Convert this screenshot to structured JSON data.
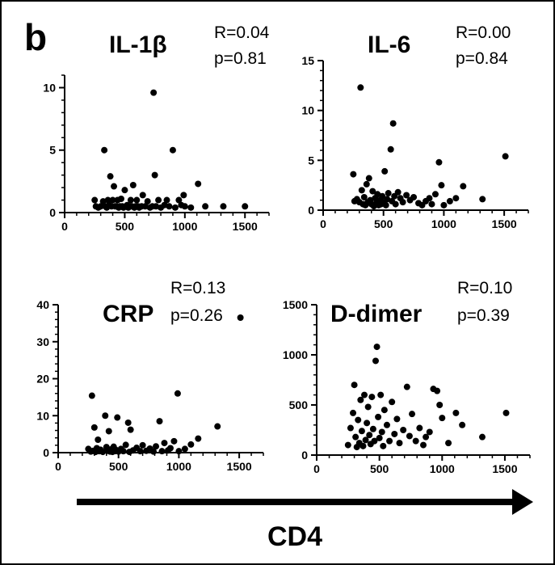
{
  "figure": {
    "panel_letter": "b",
    "x_axis_title": "CD4"
  },
  "chart_data": [
    {
      "type": "scatter",
      "title": "IL-1β",
      "annotations": [
        "R=0.04",
        "p=0.81"
      ],
      "xlim": [
        0,
        1700
      ],
      "ylim": [
        0,
        11
      ],
      "xticks": [
        0,
        500,
        1000,
        1500
      ],
      "yticks": [
        0,
        5,
        10
      ],
      "points": [
        [
          250,
          1.0
        ],
        [
          260,
          0.5
        ],
        [
          280,
          0.4
        ],
        [
          300,
          0.5
        ],
        [
          320,
          0.9
        ],
        [
          330,
          5.0
        ],
        [
          340,
          0.5
        ],
        [
          350,
          0.4
        ],
        [
          360,
          1.0
        ],
        [
          370,
          0.6
        ],
        [
          380,
          2.9
        ],
        [
          390,
          0.5
        ],
        [
          400,
          1.0
        ],
        [
          410,
          2.1
        ],
        [
          420,
          0.5
        ],
        [
          430,
          0.5
        ],
        [
          440,
          1.0
        ],
        [
          450,
          0.4
        ],
        [
          460,
          0.5
        ],
        [
          470,
          1.1
        ],
        [
          480,
          0.5
        ],
        [
          490,
          0.4
        ],
        [
          500,
          1.8
        ],
        [
          510,
          0.5
        ],
        [
          520,
          0.6
        ],
        [
          530,
          0.4
        ],
        [
          540,
          0.5
        ],
        [
          550,
          1.0
        ],
        [
          560,
          0.5
        ],
        [
          570,
          2.2
        ],
        [
          580,
          0.4
        ],
        [
          590,
          0.5
        ],
        [
          600,
          1.0
        ],
        [
          610,
          0.5
        ],
        [
          620,
          0.4
        ],
        [
          640,
          0.5
        ],
        [
          650,
          1.4
        ],
        [
          670,
          0.5
        ],
        [
          690,
          0.9
        ],
        [
          710,
          0.4
        ],
        [
          730,
          0.5
        ],
        [
          740,
          9.6
        ],
        [
          750,
          3.0
        ],
        [
          760,
          0.5
        ],
        [
          780,
          1.0
        ],
        [
          800,
          0.4
        ],
        [
          830,
          0.6
        ],
        [
          850,
          1.0
        ],
        [
          870,
          0.5
        ],
        [
          900,
          5.0
        ],
        [
          920,
          0.4
        ],
        [
          950,
          1.0
        ],
        [
          970,
          0.6
        ],
        [
          990,
          1.4
        ],
        [
          1000,
          0.5
        ],
        [
          1050,
          0.4
        ],
        [
          1110,
          2.3
        ],
        [
          1170,
          0.5
        ],
        [
          1320,
          0.5
        ],
        [
          1500,
          0.5
        ]
      ]
    },
    {
      "type": "scatter",
      "title": "IL-6",
      "annotations": [
        "R=0.00",
        "p=0.84"
      ],
      "xlim": [
        0,
        1700
      ],
      "ylim": [
        0,
        15
      ],
      "xticks": [
        0,
        500,
        1000,
        1500
      ],
      "yticks": [
        0,
        5,
        10,
        15
      ],
      "points": [
        [
          250,
          3.6
        ],
        [
          260,
          0.9
        ],
        [
          280,
          1.1
        ],
        [
          300,
          0.8
        ],
        [
          310,
          12.3
        ],
        [
          320,
          2.0
        ],
        [
          330,
          0.6
        ],
        [
          340,
          1.3
        ],
        [
          350,
          0.5
        ],
        [
          360,
          2.6
        ],
        [
          370,
          0.8
        ],
        [
          380,
          3.2
        ],
        [
          390,
          1.0
        ],
        [
          400,
          0.6
        ],
        [
          410,
          1.9
        ],
        [
          420,
          0.4
        ],
        [
          430,
          1.2
        ],
        [
          440,
          0.7
        ],
        [
          450,
          1.6
        ],
        [
          460,
          0.5
        ],
        [
          470,
          1.0
        ],
        [
          480,
          0.6
        ],
        [
          490,
          1.4
        ],
        [
          500,
          0.8
        ],
        [
          510,
          3.9
        ],
        [
          520,
          0.5
        ],
        [
          530,
          1.1
        ],
        [
          540,
          1.7
        ],
        [
          560,
          6.1
        ],
        [
          570,
          0.9
        ],
        [
          580,
          8.7
        ],
        [
          590,
          1.4
        ],
        [
          600,
          0.6
        ],
        [
          620,
          1.8
        ],
        [
          640,
          1.2
        ],
        [
          660,
          0.8
        ],
        [
          690,
          1.5
        ],
        [
          720,
          1.0
        ],
        [
          750,
          1.3
        ],
        [
          790,
          0.7
        ],
        [
          820,
          0.5
        ],
        [
          850,
          0.9
        ],
        [
          880,
          1.2
        ],
        [
          900,
          0.6
        ],
        [
          930,
          1.6
        ],
        [
          960,
          4.8
        ],
        [
          980,
          2.5
        ],
        [
          1000,
          0.5
        ],
        [
          1050,
          0.9
        ],
        [
          1100,
          1.2
        ],
        [
          1160,
          2.4
        ],
        [
          1320,
          1.1
        ],
        [
          1510,
          5.4
        ]
      ]
    },
    {
      "type": "scatter",
      "title": "CRP",
      "annotations": [
        "R=0.13",
        "p=0.26"
      ],
      "xlim": [
        0,
        1700
      ],
      "ylim": [
        0,
        40
      ],
      "xticks": [
        0,
        500,
        1000,
        1500
      ],
      "yticks": [
        0,
        10,
        20,
        30,
        40
      ],
      "points": [
        [
          250,
          1.0
        ],
        [
          270,
          0.3
        ],
        [
          280,
          15.4
        ],
        [
          290,
          0.5
        ],
        [
          300,
          6.8
        ],
        [
          310,
          0.2
        ],
        [
          320,
          1.2
        ],
        [
          330,
          3.5
        ],
        [
          340,
          0.4
        ],
        [
          350,
          0.8
        ],
        [
          370,
          0.2
        ],
        [
          390,
          10.0
        ],
        [
          400,
          1.5
        ],
        [
          410,
          0.5
        ],
        [
          420,
          5.8
        ],
        [
          430,
          0.3
        ],
        [
          440,
          0.9
        ],
        [
          450,
          0.2
        ],
        [
          460,
          1.6
        ],
        [
          470,
          0.4
        ],
        [
          480,
          0.7
        ],
        [
          490,
          9.5
        ],
        [
          500,
          0.3
        ],
        [
          520,
          1.0
        ],
        [
          540,
          0.4
        ],
        [
          560,
          2.1
        ],
        [
          580,
          8.1
        ],
        [
          590,
          0.2
        ],
        [
          600,
          6.2
        ],
        [
          620,
          0.6
        ],
        [
          650,
          1.3
        ],
        [
          680,
          0.4
        ],
        [
          700,
          2.0
        ],
        [
          730,
          0.5
        ],
        [
          760,
          1.1
        ],
        [
          790,
          0.3
        ],
        [
          810,
          1.7
        ],
        [
          840,
          8.5
        ],
        [
          860,
          0.4
        ],
        [
          880,
          2.6
        ],
        [
          910,
          0.6
        ],
        [
          930,
          1.2
        ],
        [
          960,
          3.1
        ],
        [
          990,
          16.0
        ],
        [
          1000,
          0.4
        ],
        [
          1050,
          1.0
        ],
        [
          1100,
          2.2
        ],
        [
          1160,
          3.8
        ],
        [
          1320,
          7.1
        ],
        [
          1510,
          36.5
        ]
      ]
    },
    {
      "type": "scatter",
      "title": "D-dimer",
      "annotations": [
        "R=0.10",
        "p=0.39"
      ],
      "xlim": [
        0,
        1700
      ],
      "ylim": [
        0,
        1500
      ],
      "xticks": [
        0,
        500,
        1000,
        1500
      ],
      "yticks": [
        0,
        500,
        1000,
        1500
      ],
      "points": [
        [
          250,
          100
        ],
        [
          270,
          270
        ],
        [
          290,
          420
        ],
        [
          300,
          700
        ],
        [
          310,
          180
        ],
        [
          320,
          80
        ],
        [
          330,
          350
        ],
        [
          340,
          120
        ],
        [
          350,
          550
        ],
        [
          360,
          240
        ],
        [
          370,
          90
        ],
        [
          380,
          600
        ],
        [
          390,
          150
        ],
        [
          400,
          320
        ],
        [
          410,
          480
        ],
        [
          420,
          200
        ],
        [
          430,
          110
        ],
        [
          440,
          580
        ],
        [
          450,
          260
        ],
        [
          460,
          140
        ],
        [
          470,
          940
        ],
        [
          480,
          1080
        ],
        [
          490,
          380
        ],
        [
          500,
          170
        ],
        [
          510,
          600
        ],
        [
          520,
          230
        ],
        [
          530,
          90
        ],
        [
          540,
          450
        ],
        [
          560,
          300
        ],
        [
          580,
          140
        ],
        [
          600,
          530
        ],
        [
          620,
          210
        ],
        [
          640,
          360
        ],
        [
          660,
          120
        ],
        [
          690,
          250
        ],
        [
          720,
          680
        ],
        [
          740,
          190
        ],
        [
          760,
          410
        ],
        [
          790,
          140
        ],
        [
          820,
          270
        ],
        [
          850,
          100
        ],
        [
          870,
          180
        ],
        [
          900,
          230
        ],
        [
          930,
          660
        ],
        [
          960,
          640
        ],
        [
          980,
          500
        ],
        [
          1000,
          370
        ],
        [
          1050,
          120
        ],
        [
          1110,
          420
        ],
        [
          1160,
          300
        ],
        [
          1320,
          180
        ],
        [
          1510,
          420
        ]
      ]
    }
  ]
}
